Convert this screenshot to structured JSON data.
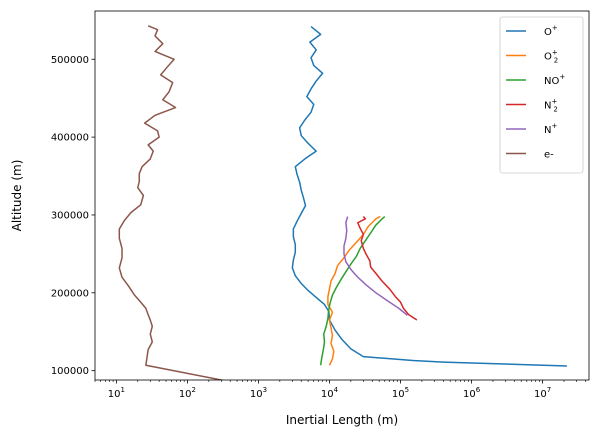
{
  "chart_data": {
    "type": "line",
    "title": "",
    "xlabel": "Inertial Length (m)",
    "ylabel": "Altitude (m)",
    "xscale": "log",
    "xlim": [
      5,
      45000000
    ],
    "ylim": [
      88000,
      562000
    ],
    "grid": false,
    "legend_position": "top-right",
    "x_ticks": [
      {
        "value": 10,
        "base": "10",
        "exp": "1"
      },
      {
        "value": 100,
        "base": "10",
        "exp": "2"
      },
      {
        "value": 1000,
        "base": "10",
        "exp": "3"
      },
      {
        "value": 10000,
        "base": "10",
        "exp": "4"
      },
      {
        "value": 100000,
        "base": "10",
        "exp": "5"
      },
      {
        "value": 1000000,
        "base": "10",
        "exp": "6"
      },
      {
        "value": 10000000,
        "base": "10",
        "exp": "7"
      }
    ],
    "y_ticks": [
      {
        "value": 100000,
        "label": "100000"
      },
      {
        "value": 200000,
        "label": "200000"
      },
      {
        "value": 300000,
        "label": "300000"
      },
      {
        "value": 400000,
        "label": "400000"
      },
      {
        "value": 500000,
        "label": "500000"
      }
    ],
    "series": [
      {
        "key": "o-plus",
        "name": "O",
        "sup": "+",
        "sub": "",
        "color": "#1f77b4",
        "points": [
          [
            22000000,
            106000
          ],
          [
            400000,
            111000
          ],
          [
            150000,
            113000
          ],
          [
            30000,
            118000
          ],
          [
            20000,
            128000
          ],
          [
            15000,
            140000
          ],
          [
            12000,
            152000
          ],
          [
            10000,
            165000
          ],
          [
            9800,
            176000
          ],
          [
            8500,
            185000
          ],
          [
            6500,
            194000
          ],
          [
            5000,
            203000
          ],
          [
            4000,
            212000
          ],
          [
            3300,
            222000
          ],
          [
            3000,
            232000
          ],
          [
            3100,
            242000
          ],
          [
            3300,
            252000
          ],
          [
            3300,
            262000
          ],
          [
            3100,
            272000
          ],
          [
            3100,
            282000
          ],
          [
            3500,
            292000
          ],
          [
            4000,
            302000
          ],
          [
            4600,
            312000
          ],
          [
            4300,
            322000
          ],
          [
            4000,
            332000
          ],
          [
            3800,
            342000
          ],
          [
            3500,
            352000
          ],
          [
            3300,
            362000
          ],
          [
            4500,
            372000
          ],
          [
            6500,
            382000
          ],
          [
            5000,
            392000
          ],
          [
            4000,
            402000
          ],
          [
            3800,
            412000
          ],
          [
            4500,
            422000
          ],
          [
            5500,
            432000
          ],
          [
            6000,
            442000
          ],
          [
            4800,
            452000
          ],
          [
            5500,
            462000
          ],
          [
            6500,
            472000
          ],
          [
            8000,
            482000
          ],
          [
            6000,
            492000
          ],
          [
            5500,
            502000
          ],
          [
            6500,
            512000
          ],
          [
            5300,
            522000
          ],
          [
            7500,
            532000
          ],
          [
            5500,
            542000
          ]
        ]
      },
      {
        "key": "o2-plus",
        "name": "O",
        "sup": "+",
        "sub": "2",
        "color": "#ff7f0e",
        "points": [
          [
            10000,
            107000
          ],
          [
            11000,
            115000
          ],
          [
            11500,
            125000
          ],
          [
            10500,
            135000
          ],
          [
            11000,
            145000
          ],
          [
            10500,
            155000
          ],
          [
            10000,
            165000
          ],
          [
            11000,
            175000
          ],
          [
            9500,
            185000
          ],
          [
            9500,
            195000
          ],
          [
            10000,
            205000
          ],
          [
            10500,
            215000
          ],
          [
            12000,
            225000
          ],
          [
            13000,
            235000
          ],
          [
            16000,
            245000
          ],
          [
            19000,
            255000
          ],
          [
            24000,
            265000
          ],
          [
            30000,
            275000
          ],
          [
            35000,
            285000
          ],
          [
            45000,
            295000
          ],
          [
            52000,
            298000
          ]
        ]
      },
      {
        "key": "no-plus",
        "name": "NO",
        "sup": "+",
        "sub": "",
        "color": "#2ca02c",
        "points": [
          [
            7500,
            107000
          ],
          [
            7800,
            117000
          ],
          [
            8200,
            127000
          ],
          [
            8500,
            137000
          ],
          [
            8300,
            147000
          ],
          [
            9000,
            157000
          ],
          [
            9500,
            167000
          ],
          [
            9700,
            177000
          ],
          [
            10200,
            187000
          ],
          [
            11000,
            197000
          ],
          [
            12500,
            207000
          ],
          [
            14500,
            217000
          ],
          [
            17000,
            227000
          ],
          [
            20000,
            237000
          ],
          [
            24000,
            247000
          ],
          [
            27000,
            257000
          ],
          [
            32000,
            267000
          ],
          [
            38000,
            277000
          ],
          [
            45000,
            287000
          ],
          [
            55000,
            295000
          ],
          [
            60000,
            298000
          ]
        ]
      },
      {
        "key": "n2-plus",
        "name": "N",
        "sup": "+",
        "sub": "2",
        "color": "#d62728",
        "points": [
          [
            170000,
            165000
          ],
          [
            130000,
            172000
          ],
          [
            110000,
            180000
          ],
          [
            100000,
            188000
          ],
          [
            85000,
            195000
          ],
          [
            70000,
            205000
          ],
          [
            55000,
            215000
          ],
          [
            45000,
            225000
          ],
          [
            38000,
            233000
          ],
          [
            37000,
            241000
          ],
          [
            33000,
            249000
          ],
          [
            30000,
            257000
          ],
          [
            28000,
            267000
          ],
          [
            30000,
            275000
          ],
          [
            27000,
            283000
          ],
          [
            25000,
            290000
          ],
          [
            32000,
            295000
          ],
          [
            30000,
            298000
          ]
        ]
      },
      {
        "key": "n-plus",
        "name": "N",
        "sup": "+",
        "sub": "",
        "color": "#9467bd",
        "points": [
          [
            125000,
            171000
          ],
          [
            95000,
            180000
          ],
          [
            65000,
            190000
          ],
          [
            45000,
            200000
          ],
          [
            33000,
            210000
          ],
          [
            25000,
            220000
          ],
          [
            20000,
            230000
          ],
          [
            17000,
            240000
          ],
          [
            16000,
            250000
          ],
          [
            16000,
            260000
          ],
          [
            17000,
            270000
          ],
          [
            17500,
            280000
          ],
          [
            17000,
            290000
          ],
          [
            18000,
            298000
          ]
        ]
      },
      {
        "key": "electrons",
        "name": "e-",
        "sup": "",
        "sub": "",
        "color": "#8c564b",
        "points": [
          [
            25000000,
            0
          ],
          [
            26,
            107000
          ],
          [
            27,
            117000
          ],
          [
            28,
            127000
          ],
          [
            32,
            137000
          ],
          [
            30,
            147000
          ],
          [
            32,
            157000
          ],
          [
            30,
            165000
          ],
          [
            28,
            172000
          ],
          [
            26,
            180000
          ],
          [
            22,
            188000
          ],
          [
            18,
            197000
          ],
          [
            15,
            208000
          ],
          [
            12,
            220000
          ],
          [
            11,
            232000
          ],
          [
            12,
            245000
          ],
          [
            12,
            257000
          ],
          [
            11,
            270000
          ],
          [
            11,
            282000
          ],
          [
            13,
            293000
          ],
          [
            16,
            303000
          ],
          [
            22,
            313000
          ],
          [
            24,
            325000
          ],
          [
            20,
            335000
          ],
          [
            21,
            343000
          ],
          [
            21,
            353000
          ],
          [
            23,
            362000
          ],
          [
            30,
            372000
          ],
          [
            33,
            382000
          ],
          [
            28,
            390000
          ],
          [
            40,
            400000
          ],
          [
            38,
            408000
          ],
          [
            25,
            418000
          ],
          [
            35,
            428000
          ],
          [
            68,
            438000
          ],
          [
            45,
            448000
          ],
          [
            55,
            458000
          ],
          [
            62,
            470000
          ],
          [
            42,
            480000
          ],
          [
            52,
            490000
          ],
          [
            65,
            500000
          ],
          [
            35,
            510000
          ],
          [
            45,
            520000
          ],
          [
            35,
            530000
          ],
          [
            38,
            538000
          ],
          [
            28,
            543000
          ]
        ]
      }
    ]
  }
}
